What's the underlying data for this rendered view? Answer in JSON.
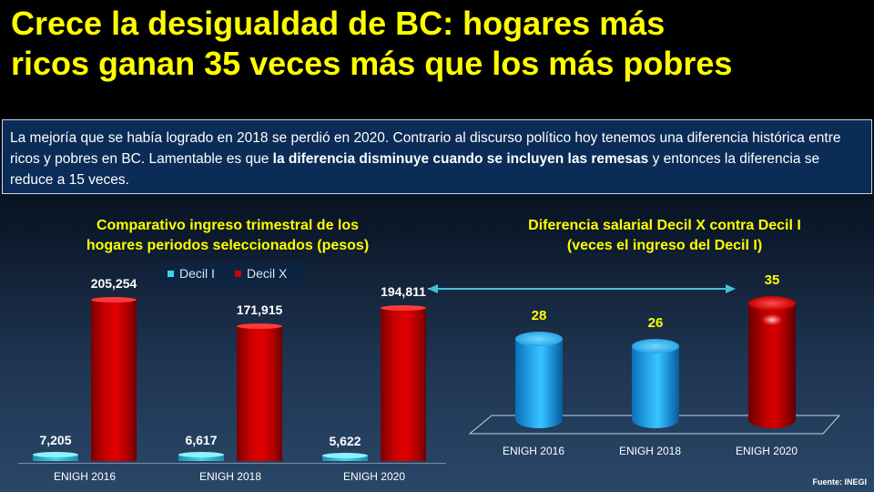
{
  "headline": {
    "line1": "Crece la desigualdad de BC: hogares más",
    "line2": "ricos ganan 35 veces más que los más pobres"
  },
  "summary": {
    "part1": "La mejoría que se había logrado en 2018 se perdió en 2020. Contrario al discurso político hoy tenemos una diferencia histórica entre ricos y pobres en BC. Lamentable es que ",
    "bold": "la diferencia disminuye cuando se incluyen las remesas",
    "part2": " y entonces la diferencia se reduce a 15 veces."
  },
  "source": "Fuente: INEGI",
  "colors": {
    "title": "#ffff00",
    "decil_i": "#3fd3ea",
    "decil_x": "#d10000",
    "ratio_blue": "#27a9ef",
    "arrow": "#3fc4d8"
  },
  "chart_data": [
    {
      "type": "bar",
      "title": "Comparativo ingreso trimestral de los hogares periodos seleccionados (pesos)",
      "title_line1": "Comparativo ingreso trimestral de los",
      "title_line2": "hogares periodos seleccionados (pesos)",
      "categories": [
        "ENIGH 2016",
        "ENIGH 2018",
        "ENIGH 2020"
      ],
      "series": [
        {
          "name": "Decil I",
          "values": [
            7205,
            6617,
            5622
          ],
          "labels": [
            "7,205",
            "6,617",
            "5,622"
          ]
        },
        {
          "name": "Decil X",
          "values": [
            205254,
            171915,
            194811
          ],
          "labels": [
            "205,254",
            "171,915",
            "194,811"
          ]
        }
      ],
      "ylim": [
        0,
        230000
      ],
      "legend": "top-left",
      "grid": false
    },
    {
      "type": "bar",
      "title": "Diferencia salarial Decil X contra Decil I (veces el ingreso del Decil I)",
      "title_line1": "Diferencia salarial Decil X contra Decil I",
      "title_line2": "(veces el ingreso del Decil I)",
      "categories": [
        "ENIGH 2016",
        "ENIGH 2018",
        "ENIGH 2020"
      ],
      "values": [
        28,
        26,
        35
      ],
      "labels": [
        "28",
        "26",
        "35"
      ],
      "ylim": [
        0,
        38
      ],
      "grid": false
    }
  ]
}
